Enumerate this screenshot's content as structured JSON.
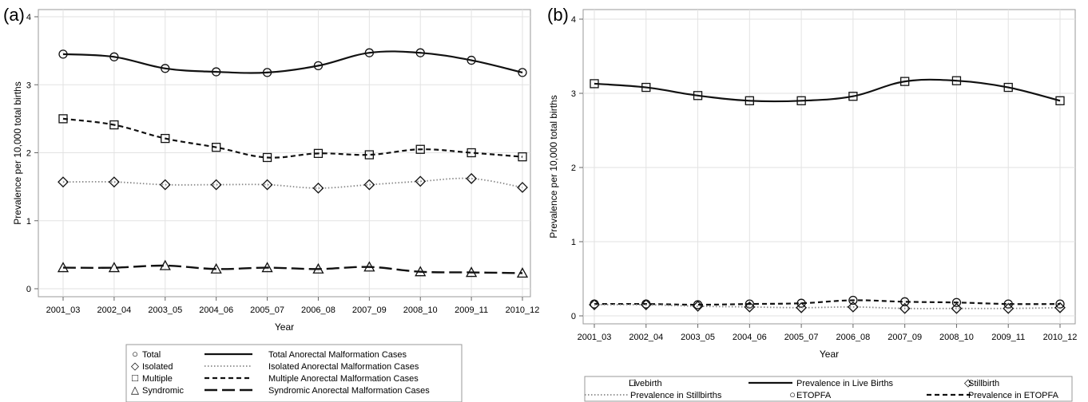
{
  "panels": {
    "a": {
      "label": "(a)"
    },
    "b": {
      "label": "(b)"
    }
  },
  "chart_data": [
    {
      "type": "line",
      "panel": "(a)",
      "xlabel": "Year",
      "ylabel": "Prevalence per 10,000 total births",
      "ylim": [
        0,
        4
      ],
      "yticks": [
        "0",
        "1",
        "2",
        "3",
        "4"
      ],
      "grid": true,
      "categories": [
        "2001_03",
        "2002_04",
        "2003_05",
        "2004_06",
        "2005_07",
        "2006_08",
        "2007_09",
        "2008_10",
        "2009_11",
        "2010_12"
      ],
      "series": [
        {
          "name": "Total",
          "marker": "circle",
          "line": "solid",
          "line_label": "Total Anorectal Malformation Cases",
          "values": [
            3.45,
            3.41,
            3.24,
            3.19,
            3.18,
            3.28,
            3.47,
            3.47,
            3.36,
            3.18
          ]
        },
        {
          "name": "Multiple",
          "marker": "square",
          "line": "dash",
          "line_label": "Multiple Anorectal Malformation Cases",
          "values": [
            2.5,
            2.41,
            2.21,
            2.08,
            1.93,
            1.99,
            1.97,
            2.05,
            2.0,
            1.94
          ]
        },
        {
          "name": "Isolated",
          "marker": "diamond",
          "line": "dot",
          "line_label": "Isolated Anorectal Malformation Cases",
          "values": [
            1.57,
            1.57,
            1.53,
            1.53,
            1.53,
            1.48,
            1.53,
            1.58,
            1.62,
            1.49
          ]
        },
        {
          "name": "Syndromic",
          "marker": "triangle",
          "line": "longdash",
          "line_label": "Syndromic Anorectal Malformation Cases",
          "values": [
            0.31,
            0.31,
            0.34,
            0.29,
            0.31,
            0.29,
            0.32,
            0.25,
            0.24,
            0.23
          ]
        }
      ],
      "legend": {
        "placement": "bottom",
        "rows": [
          {
            "symbol": "○",
            "name": "Total",
            "line": "solid",
            "text": "Total Anorectal Malformation Cases"
          },
          {
            "symbol": "◇",
            "name": "Isolated",
            "line": "dot",
            "text": "Isolated Anorectal Malformation Cases"
          },
          {
            "symbol": "□",
            "name": "Multiple",
            "line": "dash",
            "text": "Multiple Anorectal Malformation Cases"
          },
          {
            "symbol": "△",
            "name": "Syndromic",
            "line": "longdash",
            "text": "Syndromic Anorectal Malformation Cases"
          }
        ]
      }
    },
    {
      "type": "line",
      "panel": "(b)",
      "xlabel": "Year",
      "ylabel": "Prevalence per 10,000 total births",
      "ylim": [
        0,
        4
      ],
      "yticks": [
        "0",
        "1",
        "2",
        "3",
        "4"
      ],
      "grid": true,
      "categories": [
        "2001_03",
        "2002_04",
        "2003_05",
        "2004_06",
        "2005_07",
        "2006_08",
        "2007_09",
        "2008_10",
        "2009_11",
        "2010_12"
      ],
      "series": [
        {
          "name": "Livebirth",
          "marker": "square",
          "line": "solid",
          "line_label": "Prevalence in Live Births",
          "values": [
            3.13,
            3.08,
            2.97,
            2.9,
            2.9,
            2.96,
            3.16,
            3.17,
            3.08,
            2.9
          ]
        },
        {
          "name": "ETOPFA",
          "marker": "circle",
          "line": "dash",
          "line_label": "Prevalence in ETOPFA",
          "values": [
            0.16,
            0.16,
            0.15,
            0.16,
            0.17,
            0.21,
            0.19,
            0.18,
            0.16,
            0.16
          ]
        },
        {
          "name": "Stillbirth",
          "marker": "diamond",
          "line": "dot",
          "line_label": "Prevalence in Stillbirths",
          "values": [
            0.15,
            0.15,
            0.13,
            0.12,
            0.11,
            0.12,
            0.1,
            0.1,
            0.1,
            0.11
          ]
        }
      ],
      "legend": {
        "placement": "bottom",
        "items": [
          {
            "kind": "marker",
            "symbol": "□",
            "text": "Livebirth"
          },
          {
            "kind": "line",
            "line": "solid",
            "text": "Prevalence in Live Births"
          },
          {
            "kind": "marker",
            "symbol": "◇",
            "text": "Stillbirth"
          },
          {
            "kind": "line",
            "line": "dot",
            "text": "Prevalence in Stillbirths"
          },
          {
            "kind": "marker",
            "symbol": "○",
            "text": "ETOPFA"
          },
          {
            "kind": "line",
            "line": "dash",
            "text": "Prevalence in ETOPFA"
          }
        ]
      }
    }
  ]
}
